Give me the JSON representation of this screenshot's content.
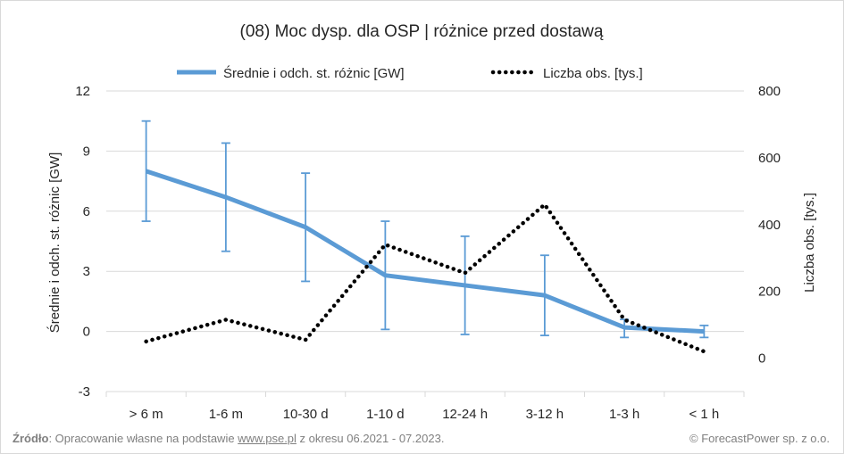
{
  "chart_data": {
    "type": "line",
    "title": "(08) Moc dysp. dla OSP | różnice przed dostawą",
    "categories": [
      "> 6 m",
      "1-6 m",
      "10-30 d",
      "1-10 d",
      "12-24 h",
      "3-12 h",
      "1-3 h",
      "< 1 h"
    ],
    "y_left": {
      "label": "Średnie i odch. st. różnic [GW]",
      "min": -3,
      "max": 12,
      "ticks": [
        "-3",
        "0",
        "3",
        "6",
        "9",
        "12"
      ]
    },
    "y_right": {
      "label": "Liczba obs. [tys.]",
      "min": -100,
      "max": 800,
      "ticks": [
        "0",
        "200",
        "400",
        "600",
        "800"
      ]
    },
    "legend_position": "top",
    "gridlines": "horizontal",
    "series": [
      {
        "name": "Średnie i odch. st. różnic [GW]",
        "axis": "left",
        "color": "#5b9bd5",
        "style": "solid",
        "values": [
          8.0,
          6.7,
          5.2,
          2.8,
          2.3,
          1.8,
          0.2,
          0.0
        ],
        "error_low": [
          5.5,
          4.0,
          2.5,
          0.1,
          -0.15,
          -0.2,
          -0.3,
          -0.3
        ],
        "error_high": [
          10.5,
          9.4,
          7.9,
          5.5,
          4.75,
          3.8,
          0.6,
          0.3
        ]
      },
      {
        "name": "Liczba obs. [tys.]",
        "axis": "right",
        "color": "#000000",
        "style": "dotted",
        "values": [
          50,
          115,
          55,
          340,
          255,
          460,
          115,
          20
        ]
      }
    ]
  },
  "footer": {
    "source_label": "Źródło",
    "source_text_before": ": Opracowanie własne na podstawie ",
    "source_link": "www.pse.pl",
    "source_text_after": " z okresu 06.2021 - 07.2023.",
    "copyright": "© ForecastPower sp. z o.o."
  }
}
